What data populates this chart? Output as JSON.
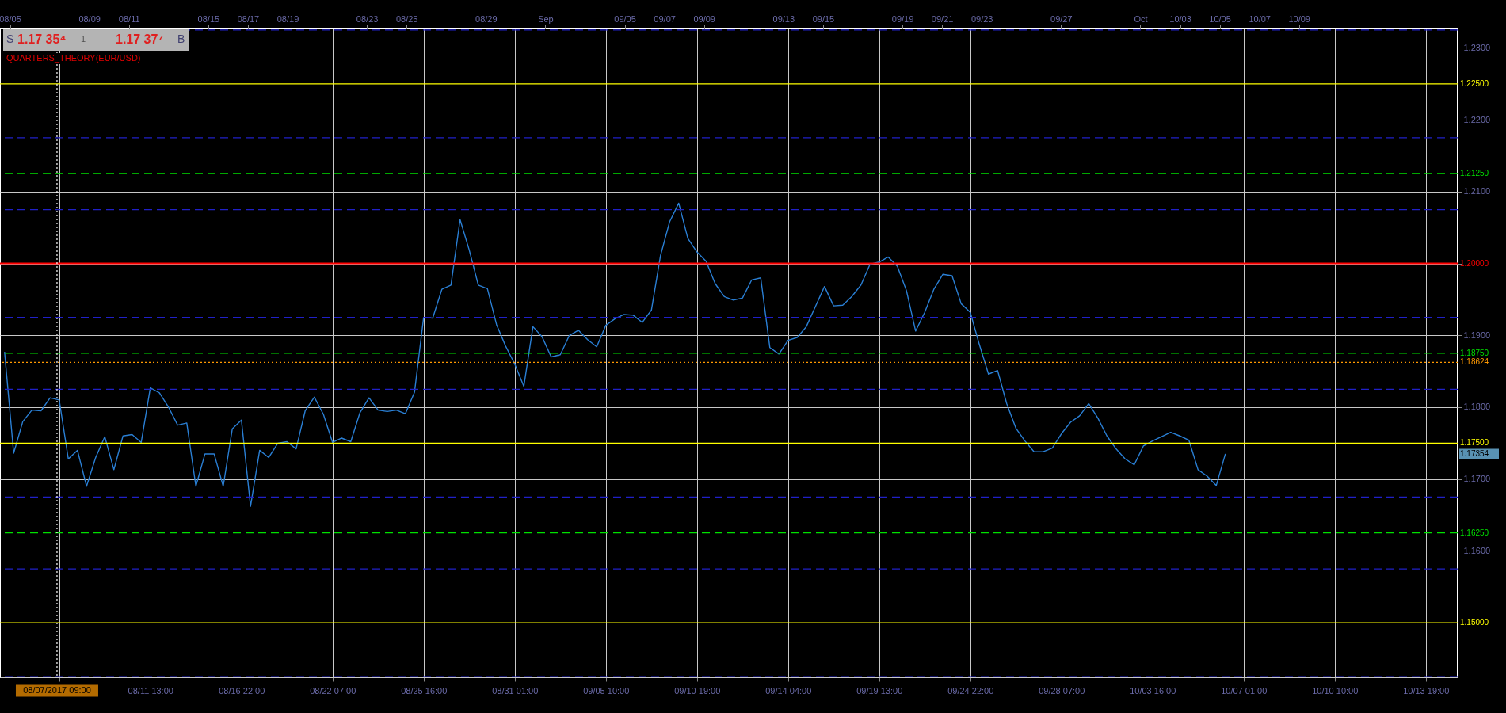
{
  "chart_data": {
    "type": "line",
    "title": "QUARTERS_THEORY(EUR/USD)",
    "annotations": [
      "S",
      "1.17 35⁴",
      "1",
      "1.17 37⁷",
      "B",
      "1.17354"
    ],
    "categories": [
      null,
      null,
      null,
      null,
      null,
      null,
      null,
      null,
      null,
      null,
      null,
      null,
      null,
      null,
      null,
      null,
      "08/11 13:00",
      null,
      null,
      null,
      null,
      null,
      null,
      null,
      null,
      null,
      "08/16 22:00",
      null,
      null,
      null,
      null,
      null,
      null,
      null,
      null,
      null,
      "08/22 07:00",
      null,
      null,
      null,
      null,
      null,
      null,
      null,
      null,
      null,
      "08/25 16:00",
      null,
      null,
      null,
      null,
      null,
      null,
      null,
      null,
      null,
      "08/31 01:00",
      null,
      null,
      null,
      null,
      null,
      null,
      null,
      null,
      null,
      "09/05 10:00",
      null,
      null,
      null,
      null,
      null,
      null,
      null,
      null,
      null,
      "09/10 19:00",
      null,
      null,
      null,
      null,
      null,
      null,
      null,
      null,
      null,
      "09/14 04:00",
      null,
      null,
      null,
      null,
      null,
      null,
      null,
      null,
      null,
      "09/19 13:00",
      null,
      null,
      null,
      null,
      null,
      null,
      null,
      null,
      null,
      "09/24 22:00",
      null,
      null,
      null,
      null,
      null,
      null,
      null,
      null,
      null,
      "09/28 07:00",
      null,
      null,
      null,
      null,
      null,
      null,
      null,
      null,
      null,
      "10/03 16:00",
      null,
      null,
      null,
      null,
      null,
      null,
      null,
      null,
      null,
      "10/07 01:00",
      null,
      null,
      null,
      null,
      null,
      null,
      null,
      null,
      null,
      "10/10 10:00",
      null,
      null,
      null,
      null,
      null,
      null,
      null,
      null,
      null,
      "10/13 19:00",
      null,
      null,
      null
    ],
    "series": [
      {
        "color": "#2a7fd4",
        "values": [
          1.1877,
          1.1736,
          1.178,
          1.1796,
          1.1795,
          1.1813,
          1.181,
          1.1728,
          1.174,
          1.169,
          1.173,
          1.1759,
          1.1713,
          1.176,
          1.1762,
          1.1751,
          1.1827,
          1.182,
          1.18,
          1.1775,
          1.1778,
          1.169,
          1.1735,
          1.1735,
          1.169,
          1.177,
          1.1782,
          1.1662,
          1.174,
          1.173,
          1.175,
          1.1752,
          1.1742,
          1.1795,
          1.1814,
          1.179,
          1.1751,
          1.1757,
          1.1752,
          1.1792,
          1.1813,
          1.1796,
          1.1794,
          1.1796,
          1.1791,
          1.1821,
          1.1925,
          1.1924,
          1.1964,
          1.197,
          1.2061,
          1.2019,
          1.197,
          1.1965,
          1.1915,
          1.1885,
          1.186,
          1.1829,
          1.1912,
          1.1898,
          1.187,
          1.1873,
          1.19,
          1.1907,
          1.1894,
          1.1884,
          1.1914,
          1.1923,
          1.1929,
          1.1928,
          1.1918,
          1.1935,
          1.2011,
          1.2058,
          1.2084,
          1.2035,
          1.2016,
          1.2003,
          1.1972,
          1.1954,
          1.1949,
          1.1952,
          1.1977,
          1.198,
          1.1883,
          1.1874,
          1.1893,
          1.1897,
          1.1912,
          1.194,
          1.1968,
          1.1941,
          1.1942,
          1.1954,
          1.197,
          1.1999,
          1.2002,
          1.2009,
          1.1996,
          1.1962,
          1.1906,
          1.1932,
          1.1964,
          1.1985,
          1.1983,
          1.1944,
          1.1932,
          1.1887,
          1.1846,
          1.1851,
          1.1805,
          1.1771,
          1.1753,
          1.1738,
          1.1738,
          1.1743,
          1.1763,
          1.1779,
          1.1788,
          1.1805,
          1.1785,
          1.176,
          1.1742,
          1.1728,
          1.172,
          1.1746,
          1.1753,
          1.1759,
          1.1765,
          1.176,
          1.1754,
          1.1713,
          1.1704,
          1.1691,
          1.1735,
          null,
          null,
          null,
          null,
          null,
          null,
          null,
          null,
          null,
          null,
          null,
          null,
          null,
          null,
          null,
          null,
          null,
          null,
          null,
          null,
          null,
          null,
          null,
          null,
          null
        ]
      }
    ],
    "x2lim": [
      "2017-08-04T12:00",
      "2017-10-17"
    ],
    "x2ticks": [
      {
        "value": "2017-08-05",
        "label": "08/05"
      },
      {
        "value": "2017-08-09",
        "label": "08/09"
      },
      {
        "value": "2017-08-11",
        "label": "08/11"
      },
      {
        "value": "2017-08-15",
        "label": "08/15"
      },
      {
        "value": "2017-08-17",
        "label": "08/17"
      },
      {
        "value": "2017-08-19",
        "label": "08/19"
      },
      {
        "value": "2017-08-23",
        "label": "08/23"
      },
      {
        "value": "2017-08-25",
        "label": "08/25"
      },
      {
        "value": "2017-08-29",
        "label": "08/29"
      },
      {
        "value": "2017-09-01",
        "label": "Sep"
      },
      {
        "value": "2017-09-05",
        "label": "09/05"
      },
      {
        "value": "2017-09-07",
        "label": "09/07"
      },
      {
        "value": "2017-09-09",
        "label": "09/09"
      },
      {
        "value": "2017-09-13",
        "label": "09/13"
      },
      {
        "value": "2017-09-15",
        "label": "09/15"
      },
      {
        "value": "2017-09-19",
        "label": "09/19"
      },
      {
        "value": "2017-09-21",
        "label": "09/21"
      },
      {
        "value": "2017-09-23",
        "label": "09/23"
      },
      {
        "value": "2017-09-27",
        "label": "09/27"
      },
      {
        "value": "2017-10-01",
        "label": "Oct"
      },
      {
        "value": "2017-10-03",
        "label": "10/03"
      },
      {
        "value": "2017-10-05",
        "label": "10/05"
      },
      {
        "value": "2017-10-07",
        "label": "10/07"
      },
      {
        "value": "2017-10-09",
        "label": "10/09"
      }
    ],
    "ylim": [
      1.1424,
      1.2327
    ],
    "yticks": [
      {
        "value": 1.15,
        "label": null
      },
      {
        "value": 1.16,
        "label": "1.1600"
      },
      {
        "value": 1.17,
        "label": "1.1700"
      },
      {
        "value": 1.18,
        "label": "1.1800"
      },
      {
        "value": 1.19,
        "label": "1.1900"
      },
      {
        "value": 1.2,
        "label": null
      },
      {
        "value": 1.21,
        "label": "1.2100"
      },
      {
        "value": 1.22,
        "label": "1.2200"
      },
      {
        "value": 1.23,
        "label": "1.2300"
      }
    ],
    "grid": true,
    "ref_lines": [
      {
        "axis": "y",
        "value": 1.225,
        "label": "1.22500",
        "color": "#ffff00",
        "line_style": "solid"
      },
      {
        "axis": "y",
        "value": 1.2125,
        "label": "1.21250",
        "color": "#00e000",
        "line_style": "dashed"
      },
      {
        "axis": "y",
        "value": 1.2,
        "label": "1.20000",
        "color": "#ff0000",
        "line_style": "solid"
      },
      {
        "axis": "y",
        "value": 1.1875,
        "label": "1.18750",
        "color": "#00e000",
        "line_style": "dashed"
      },
      {
        "axis": "y",
        "value": 1.18624,
        "label": "1.18624",
        "color": "#ff9900",
        "line_style": "dotted"
      },
      {
        "axis": "y",
        "value": 1.175,
        "label": "1.17500",
        "color": "#ffff00",
        "line_style": "solid"
      },
      {
        "axis": "y",
        "value": 1.1625,
        "label": "1.16250",
        "color": "#00e000",
        "line_style": "dashed"
      },
      {
        "axis": "y",
        "value": 1.15,
        "label": "1.15000",
        "color": "#ffff00",
        "line_style": "solid"
      },
      {
        "axis": "y",
        "value": 1.2325,
        "color": "#2020c8",
        "line_style": "dashed"
      },
      {
        "axis": "y",
        "value": 1.2175,
        "color": "#2020c8",
        "line_style": "dashed"
      },
      {
        "axis": "y",
        "value": 1.2075,
        "color": "#2020c8",
        "line_style": "dashed"
      },
      {
        "axis": "y",
        "value": 1.1925,
        "color": "#2020c8",
        "line_style": "dashed"
      },
      {
        "axis": "y",
        "value": 1.1825,
        "color": "#2020c8",
        "line_style": "dashed"
      },
      {
        "axis": "y",
        "value": 1.1675,
        "color": "#2020c8",
        "line_style": "dashed"
      },
      {
        "axis": "y",
        "value": 1.1575,
        "color": "#2020c8",
        "line_style": "dashed"
      },
      {
        "axis": "y",
        "value": 1.1425,
        "color": "#2020c8",
        "line_style": "dashed"
      },
      {
        "axis": "x2",
        "value": "2017-08-07T09:00",
        "label": "08/07/2017 09:00",
        "color": "#ffffff",
        "line_style": "dotted"
      }
    ]
  }
}
